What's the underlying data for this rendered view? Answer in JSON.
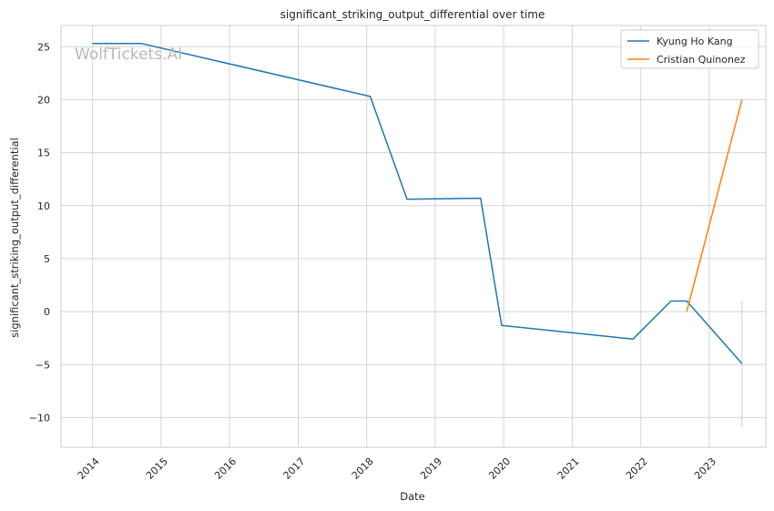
{
  "chart_data": {
    "type": "line",
    "title": "significant_striking_output_differential over time",
    "xlabel": "Date",
    "ylabel": "significant_striking_output_differential",
    "watermark": "WolfTickets.AI",
    "x_ticks": [
      "2014",
      "2015",
      "2016",
      "2017",
      "2018",
      "2019",
      "2020",
      "2021",
      "2022",
      "2023"
    ],
    "y_ticks": [
      25,
      20,
      15,
      10,
      5,
      0,
      -5,
      -10
    ],
    "xlim": [
      "2013-07-17",
      "2023-10-29"
    ],
    "ylim": [
      -12.8,
      27.0
    ],
    "grid": true,
    "legend_position": "top-right",
    "series": [
      {
        "name": "Kyung Ho Kang",
        "color": "#1f77b4",
        "points": [
          {
            "x": "2014-01-01",
            "y": 25.3
          },
          {
            "x": "2014-09-20",
            "y": 25.3
          },
          {
            "x": "2018-01-20",
            "y": 20.3
          },
          {
            "x": "2018-08-04",
            "y": 10.6
          },
          {
            "x": "2019-08-31",
            "y": 10.7
          },
          {
            "x": "2019-12-21",
            "y": -1.3
          },
          {
            "x": "2021-11-20",
            "y": -2.6
          },
          {
            "x": "2022-06-11",
            "y": 1.0
          },
          {
            "x": "2022-09-03",
            "y": 1.0
          },
          {
            "x": "2023-06-24",
            "y": -4.9
          }
        ]
      },
      {
        "name": "Cristian Quinonez",
        "color": "#ff7f0e",
        "points": [
          {
            "x": "2022-09-03",
            "y": 0.0
          },
          {
            "x": "2023-06-24",
            "y": 20.0
          }
        ]
      }
    ],
    "error_band": {
      "x": "2023-06-24",
      "y_low": -10.9,
      "y_high": 1.0,
      "color": "#a6c8e6"
    }
  }
}
